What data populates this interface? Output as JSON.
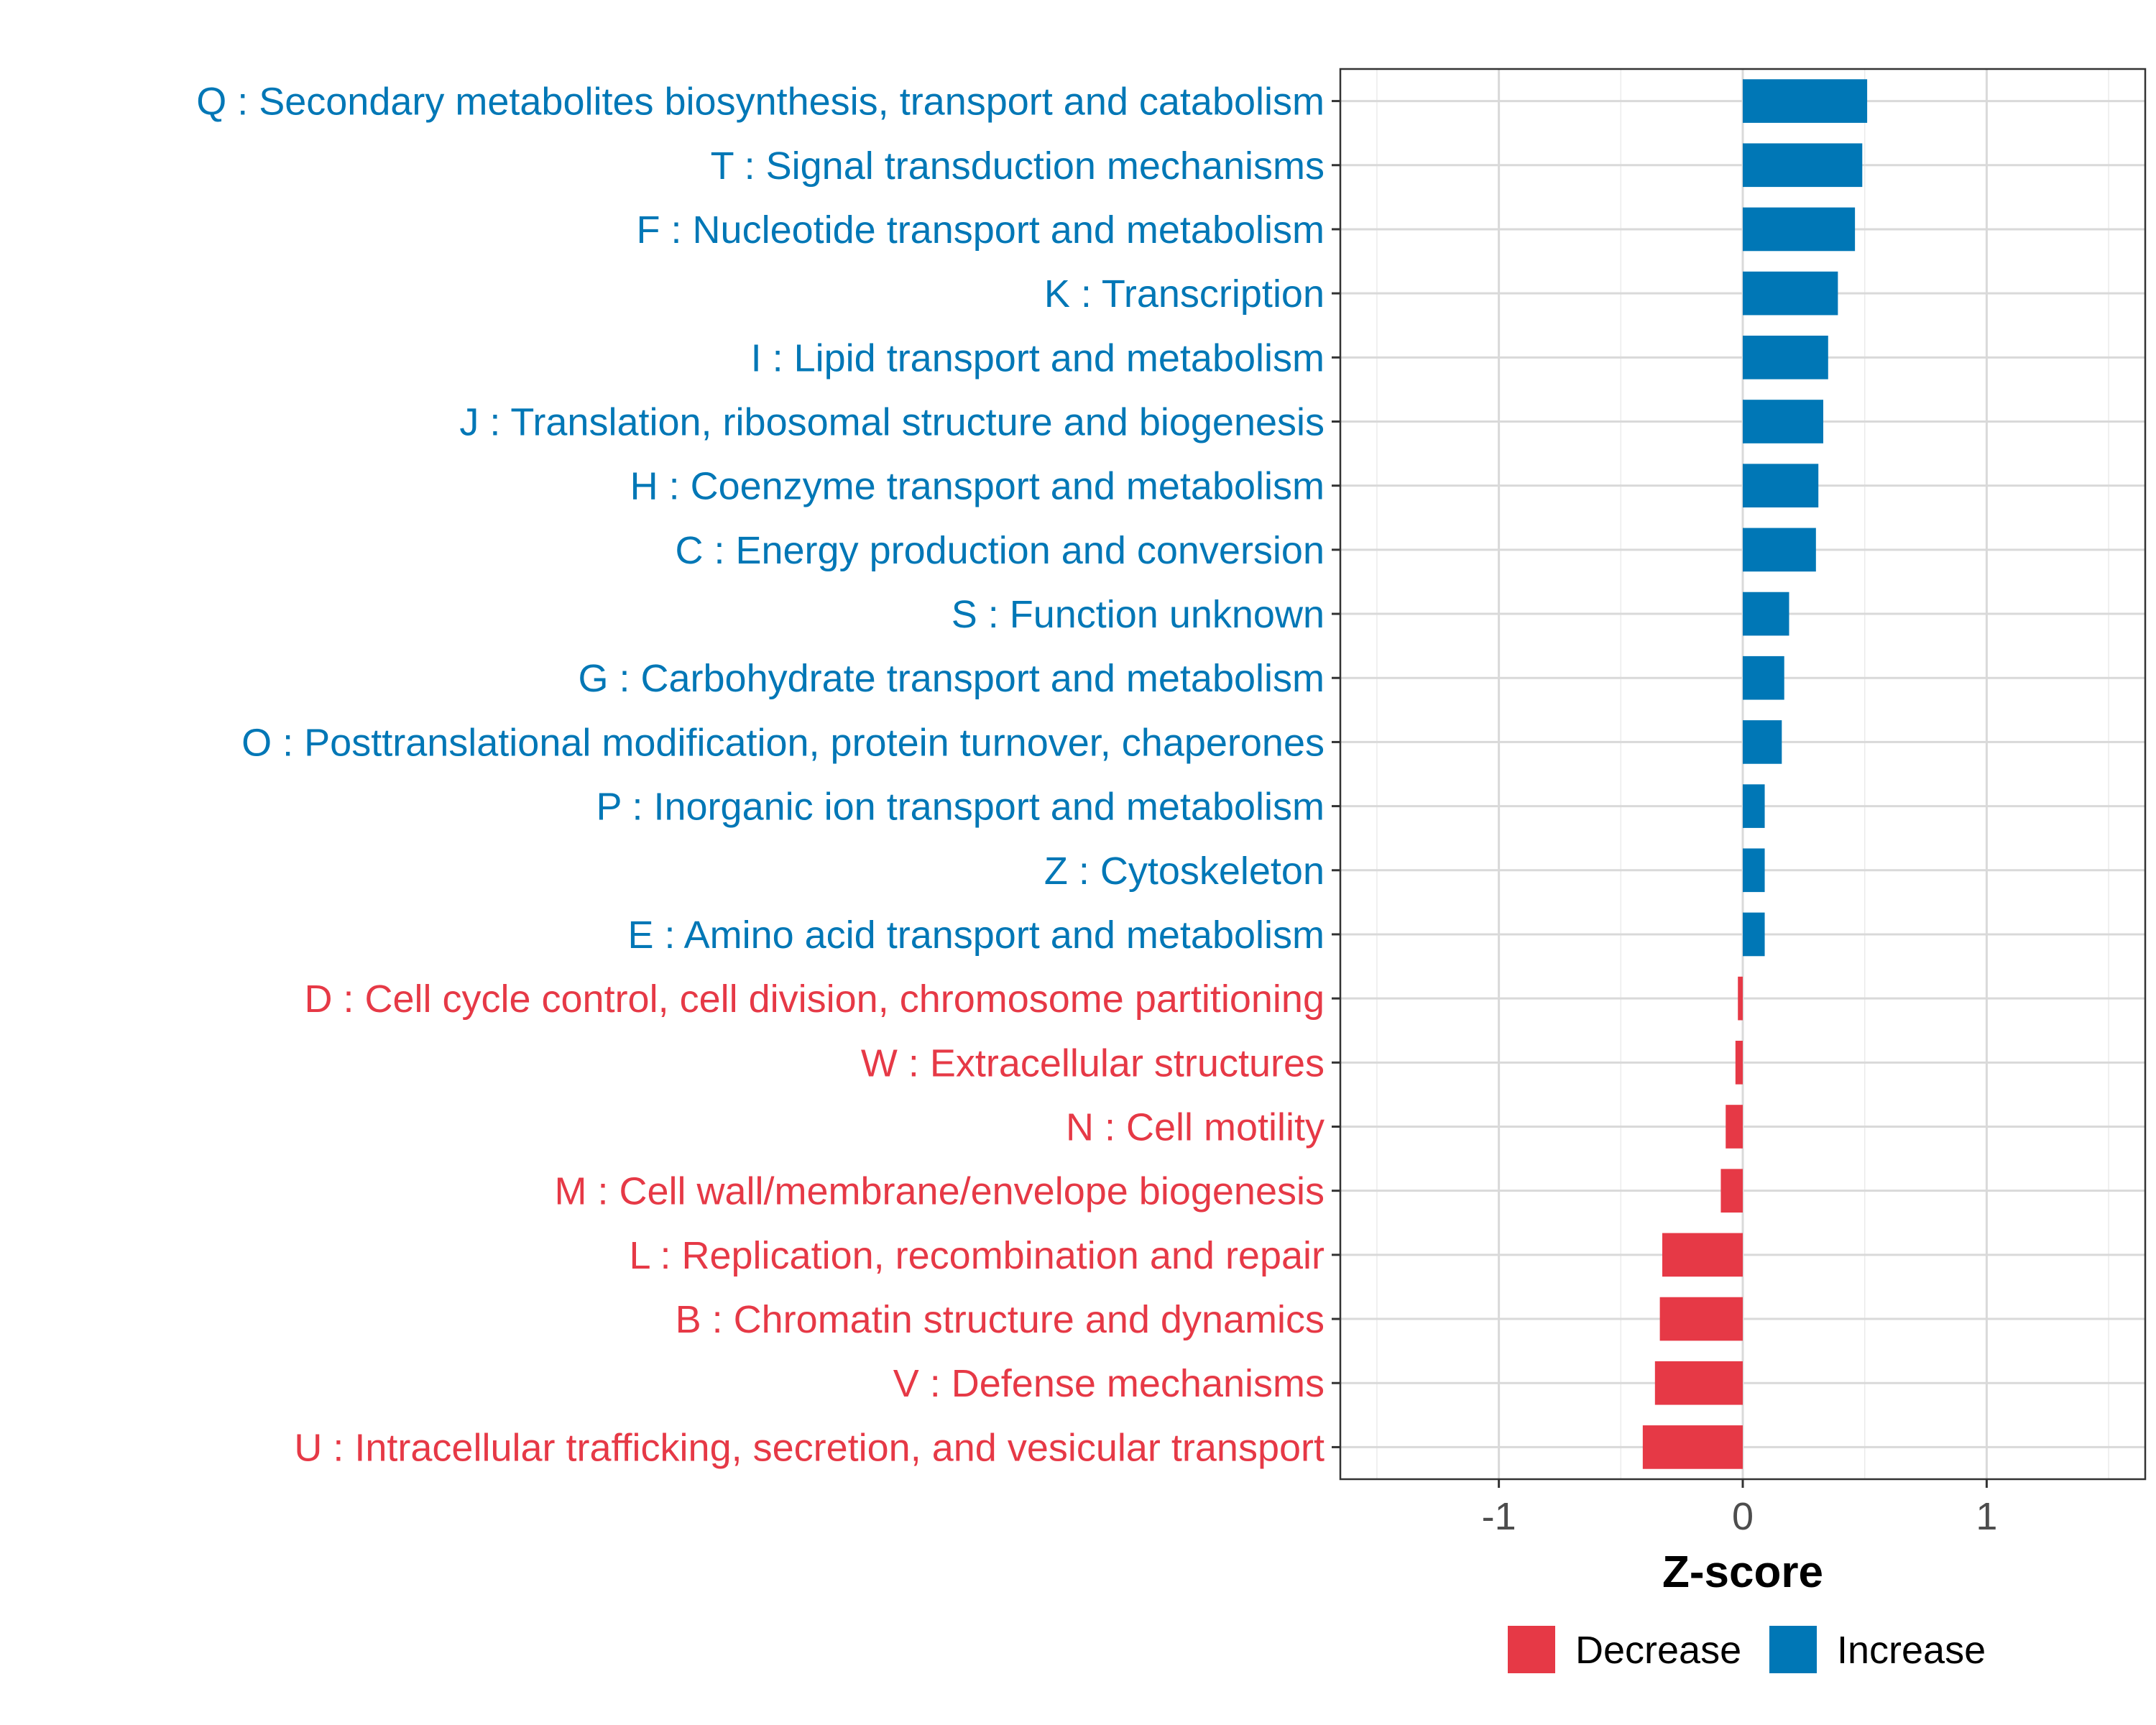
{
  "chart_data": {
    "type": "bar",
    "orientation": "horizontal",
    "xlabel": "Z-score",
    "ylabel": "",
    "xlim": [
      -1.65,
      1.65
    ],
    "xticks": [
      -1,
      0,
      1
    ],
    "xtick_labels": [
      "-1",
      "0",
      "1"
    ],
    "grid": true,
    "legend": {
      "position": "bottom",
      "entries": [
        {
          "name": "Decrease",
          "color": "#E63946"
        },
        {
          "name": "Increase",
          "color": "#0077B6"
        }
      ]
    },
    "colors": {
      "Increase": "#0077B6",
      "Decrease": "#E63946"
    },
    "categories": [
      {
        "label": "Q : Secondary metabolites biosynthesis, transport and catabolism",
        "value": 0.51,
        "direction": "Increase"
      },
      {
        "label": "T : Signal transduction mechanisms",
        "value": 0.49,
        "direction": "Increase"
      },
      {
        "label": "F : Nucleotide transport and metabolism",
        "value": 0.46,
        "direction": "Increase"
      },
      {
        "label": "K : Transcription",
        "value": 0.39,
        "direction": "Increase"
      },
      {
        "label": "I : Lipid transport and metabolism",
        "value": 0.35,
        "direction": "Increase"
      },
      {
        "label": "J : Translation, ribosomal structure and biogenesis",
        "value": 0.33,
        "direction": "Increase"
      },
      {
        "label": "H : Coenzyme transport and metabolism",
        "value": 0.31,
        "direction": "Increase"
      },
      {
        "label": "C : Energy production and conversion",
        "value": 0.3,
        "direction": "Increase"
      },
      {
        "label": "S : Function unknown",
        "value": 0.19,
        "direction": "Increase"
      },
      {
        "label": "G : Carbohydrate transport and metabolism",
        "value": 0.17,
        "direction": "Increase"
      },
      {
        "label": "O : Posttranslational modification, protein turnover, chaperones",
        "value": 0.16,
        "direction": "Increase"
      },
      {
        "label": "P : Inorganic ion transport and metabolism",
        "value": 0.09,
        "direction": "Increase"
      },
      {
        "label": "Z : Cytoskeleton",
        "value": 0.09,
        "direction": "Increase"
      },
      {
        "label": "E : Amino acid transport and metabolism",
        "value": 0.09,
        "direction": "Increase"
      },
      {
        "label": "D : Cell cycle control, cell division, chromosome partitioning",
        "value": -0.02,
        "direction": "Decrease"
      },
      {
        "label": "W : Extracellular structures",
        "value": -0.03,
        "direction": "Decrease"
      },
      {
        "label": "N : Cell motility",
        "value": -0.07,
        "direction": "Decrease"
      },
      {
        "label": "M : Cell wall/membrane/envelope biogenesis",
        "value": -0.09,
        "direction": "Decrease"
      },
      {
        "label": "L : Replication, recombination and repair",
        "value": -0.33,
        "direction": "Decrease"
      },
      {
        "label": "B : Chromatin structure and dynamics",
        "value": -0.34,
        "direction": "Decrease"
      },
      {
        "label": "V : Defense mechanisms",
        "value": -0.36,
        "direction": "Decrease"
      },
      {
        "label": "U : Intracellular trafficking, secretion, and vesicular transport",
        "value": -0.41,
        "direction": "Decrease"
      }
    ]
  }
}
